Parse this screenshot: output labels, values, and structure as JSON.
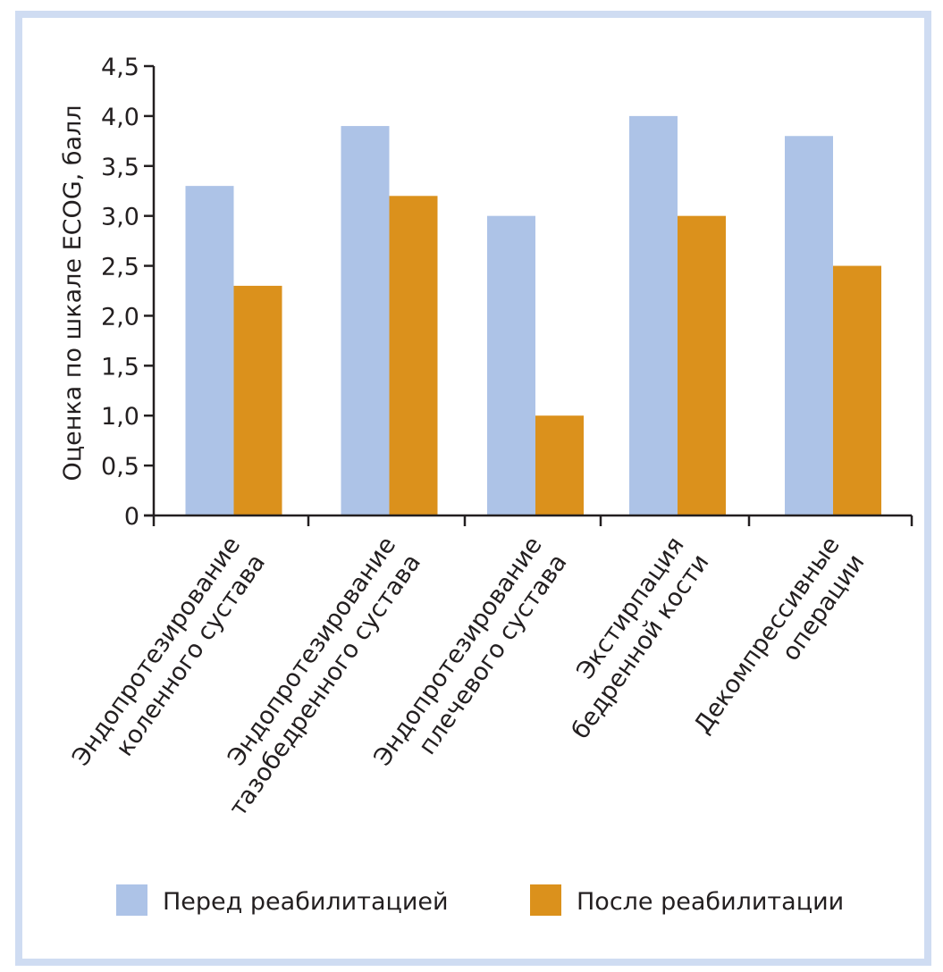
{
  "chart_data": {
    "type": "bar",
    "title": "",
    "xlabel": "",
    "ylabel": "Оценка по шкале ECOG, балл",
    "ylim": [
      0,
      4.5
    ],
    "yticks": [
      0,
      0.5,
      1.0,
      1.5,
      2.0,
      2.5,
      3.0,
      3.5,
      4.0,
      4.5
    ],
    "ytick_labels": [
      "0",
      "0,5",
      "1,0",
      "1,5",
      "2,0",
      "2,5",
      "3,0",
      "3,5",
      "4,0",
      "4,5"
    ],
    "grid": false,
    "legend_position": "bottom",
    "categories": [
      [
        "Эндопротезирование",
        "коленного сустава"
      ],
      [
        "Эндопротезирование",
        "тазобедренного сустава"
      ],
      [
        "Эндопротезирование",
        "плечевого сустава"
      ],
      [
        "Экстирпация",
        "бедренной кости"
      ],
      [
        "Декомпрессивные",
        "операции"
      ]
    ],
    "series": [
      {
        "name": "Перед реабилитацией",
        "color": "#adc3e7",
        "values": [
          3.3,
          3.9,
          3.0,
          4.0,
          3.8
        ]
      },
      {
        "name": "После реабилитации",
        "color": "#db911c",
        "values": [
          2.3,
          3.2,
          1.0,
          3.0,
          2.5
        ]
      }
    ]
  },
  "frame_color": "#cfdcf2",
  "axis_color": "#231f20"
}
